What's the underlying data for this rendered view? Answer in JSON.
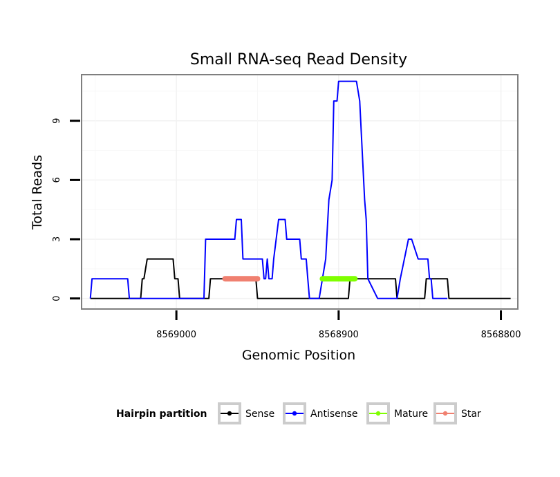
{
  "chart_data": {
    "type": "line",
    "title": "Small RNA-seq Read Density",
    "xlabel": "Genomic Position",
    "ylabel": "Total Reads",
    "x_reversed": true,
    "xlim": [
      8569058,
      8568790
    ],
    "ylim": [
      -0.5,
      11.3
    ],
    "x_ticks": [
      8569000,
      8568900,
      8568800
    ],
    "x_tick_labels": [
      "8569000",
      "8568900",
      "8568800"
    ],
    "y_ticks": [
      0,
      3,
      6,
      9
    ],
    "y_tick_labels": [
      "0",
      "3",
      "6",
      "9"
    ],
    "grid": true,
    "legend": {
      "title": "Hairpin partition",
      "position": "bottom",
      "entries": [
        {
          "label": "Sense",
          "color": "#000000"
        },
        {
          "label": "Antisense",
          "color": "#0000ff"
        },
        {
          "label": "Mature",
          "color": "#7fff00"
        },
        {
          "label": "Star",
          "color": "#f08070"
        }
      ]
    },
    "series": [
      {
        "name": "Sense",
        "color": "#000000",
        "x": [
          8569053,
          8569022,
          8569021,
          8569020,
          8569018,
          8569002,
          8569001,
          8568999,
          8568998,
          8568980,
          8568979,
          8568951,
          8568950,
          8568894,
          8568893,
          8568865,
          8568864,
          8568847,
          8568846,
          8568833,
          8568832,
          8568794
        ],
        "y": [
          0,
          0,
          1,
          1,
          2,
          2,
          1,
          1,
          0,
          0,
          1,
          1,
          0,
          0,
          1,
          1,
          0,
          0,
          1,
          1,
          0,
          0
        ]
      },
      {
        "name": "Antisense",
        "color": "#0000ff",
        "x": [
          8569053,
          8569052,
          8569030,
          8569029,
          8568983,
          8568982,
          8568964,
          8568963,
          8568960,
          8568959,
          8568958,
          8568947,
          8568946,
          8568945,
          8568944,
          8568943,
          8568942,
          8568941,
          8568940,
          8568937,
          8568933,
          8568932,
          8568924,
          8568923,
          8568920,
          8568919,
          8568918,
          8568917,
          8568912,
          8568910,
          8568908,
          8568906,
          8568904,
          8568903,
          8568901,
          8568900,
          8568899,
          8568889,
          8568887,
          8568884,
          8568883,
          8568882,
          8568876,
          8568864,
          8568862,
          8568857,
          8568856,
          8568855,
          8568851,
          8568850,
          8568845,
          8568844,
          8568843,
          8568842,
          8568833
        ],
        "y": [
          0,
          1,
          1,
          0,
          0,
          3,
          3,
          4,
          4,
          2,
          2,
          2,
          1,
          1,
          2,
          1,
          1,
          1,
          2,
          4,
          4,
          3,
          3,
          2,
          2,
          1,
          0,
          0,
          0,
          1,
          2,
          5,
          6,
          10,
          10,
          11,
          11,
          11,
          10,
          5,
          4,
          1,
          0,
          0,
          1,
          3,
          3,
          3,
          2,
          2,
          2,
          1,
          1,
          0,
          0
        ]
      },
      {
        "name": "Mature",
        "color": "#7fff00",
        "thick": true,
        "x": [
          8568910,
          8568890
        ],
        "y": [
          1,
          1
        ]
      },
      {
        "name": "Star",
        "color": "#f08070",
        "thick": true,
        "x": [
          8568970,
          8568950
        ],
        "y": [
          1,
          1
        ]
      }
    ]
  }
}
